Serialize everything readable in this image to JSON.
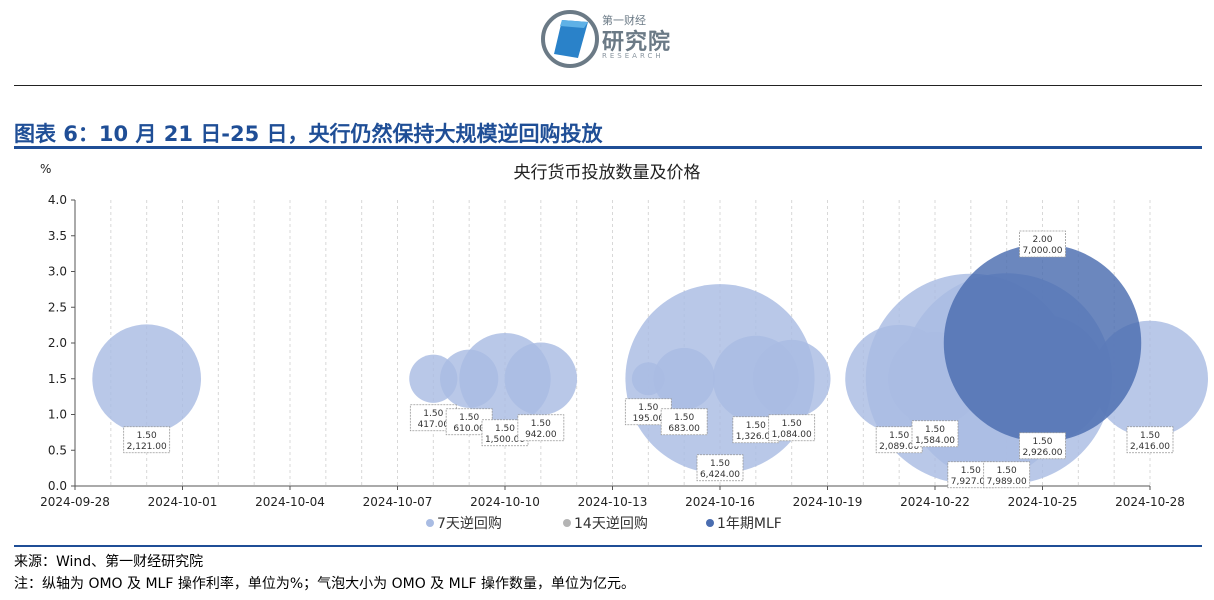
{
  "header": {
    "logo_cn": "研究院",
    "logo_top": "第一财经",
    "logo_en": "RESEARCH",
    "figure_title": "图表 6：10 月 21 日-25 日，央行仍然保持大规模逆回购投放"
  },
  "footer": {
    "source": "来源：Wind、第一财经研究院",
    "note": "注：纵轴为 OMO 及 MLF 操作利率，单位为%；气泡大小为 OMO 及 MLF 操作数量，单位为亿元。"
  },
  "chart_data": {
    "type": "bubble",
    "title": "央行货币投放数量及价格",
    "ylabel": "%",
    "ylim": [
      0,
      4.0
    ],
    "yticks": [
      "0.0",
      "0.5",
      "1.0",
      "1.5",
      "2.0",
      "2.5",
      "3.0",
      "3.5",
      "4.0"
    ],
    "xlim": [
      "2024-09-28",
      "2024-10-28"
    ],
    "xticks": [
      "2024-09-28",
      "2024-10-01",
      "2024-10-04",
      "2024-10-07",
      "2024-10-10",
      "2024-10-13",
      "2024-10-16",
      "2024-10-19",
      "2024-10-22",
      "2024-10-25",
      "2024-10-28"
    ],
    "grid": "vertical",
    "legend_position": "bottom",
    "colors": {
      "7天逆回购": "#a9bce3",
      "14天逆回购": "#b4b4b4",
      "1年期MLF": "#4a6db0"
    },
    "series": [
      {
        "name": "7天逆回购",
        "points": [
          {
            "date": "2024-09-30",
            "rate": 1.5,
            "amount": 2121.0,
            "rate_label": "1.50",
            "amount_label": "2,121.00"
          },
          {
            "date": "2024-10-08",
            "rate": 1.5,
            "amount": 417.0,
            "rate_label": "1.50",
            "amount_label": "417.00"
          },
          {
            "date": "2024-10-09",
            "rate": 1.5,
            "amount": 610.0,
            "rate_label": "1.50",
            "amount_label": "610.00"
          },
          {
            "date": "2024-10-10",
            "rate": 1.5,
            "amount": 1500.0,
            "rate_label": "1.50",
            "amount_label": "1,500.00"
          },
          {
            "date": "2024-10-11",
            "rate": 1.5,
            "amount": 942.0,
            "rate_label": "1.50",
            "amount_label": "942.00"
          },
          {
            "date": "2024-10-14",
            "rate": 1.5,
            "amount": 195.0,
            "rate_label": "1.50",
            "amount_label": "195.00"
          },
          {
            "date": "2024-10-15",
            "rate": 1.5,
            "amount": 683.0,
            "rate_label": "1.50",
            "amount_label": "683.00"
          },
          {
            "date": "2024-10-16",
            "rate": 1.5,
            "amount": 6424.0,
            "rate_label": "1.50",
            "amount_label": "6,424.00"
          },
          {
            "date": "2024-10-17",
            "rate": 1.5,
            "amount": 1326.0,
            "rate_label": "1.50",
            "amount_label": "1,326.00"
          },
          {
            "date": "2024-10-18",
            "rate": 1.5,
            "amount": 1084.0,
            "rate_label": "1.50",
            "amount_label": "1,084.00"
          },
          {
            "date": "2024-10-21",
            "rate": 1.5,
            "amount": 2089.0,
            "rate_label": "1.50",
            "amount_label": "2,089.00"
          },
          {
            "date": "2024-10-22",
            "rate": 1.5,
            "amount": 1584.0,
            "rate_label": "1.50",
            "amount_label": "1,584.00"
          },
          {
            "date": "2024-10-23",
            "rate": 1.5,
            "amount": 7927.0,
            "rate_label": "1.50",
            "amount_label": "7,927.00"
          },
          {
            "date": "2024-10-24",
            "rate": 1.5,
            "amount": 7989.0,
            "rate_label": "1.50",
            "amount_label": "7,989.00"
          },
          {
            "date": "2024-10-25",
            "rate": 1.5,
            "amount": 2926.0,
            "rate_label": "1.50",
            "amount_label": "2,926.00"
          },
          {
            "date": "2024-10-28",
            "rate": 1.5,
            "amount": 2416.0,
            "rate_label": "1.50",
            "amount_label": "2,416.00"
          }
        ]
      },
      {
        "name": "14天逆回购",
        "points": []
      },
      {
        "name": "1年期MLF",
        "points": [
          {
            "date": "2024-10-25",
            "rate": 2.0,
            "amount": 7000.0,
            "rate_label": "2.00",
            "amount_label": "7,000.00"
          }
        ]
      }
    ]
  }
}
